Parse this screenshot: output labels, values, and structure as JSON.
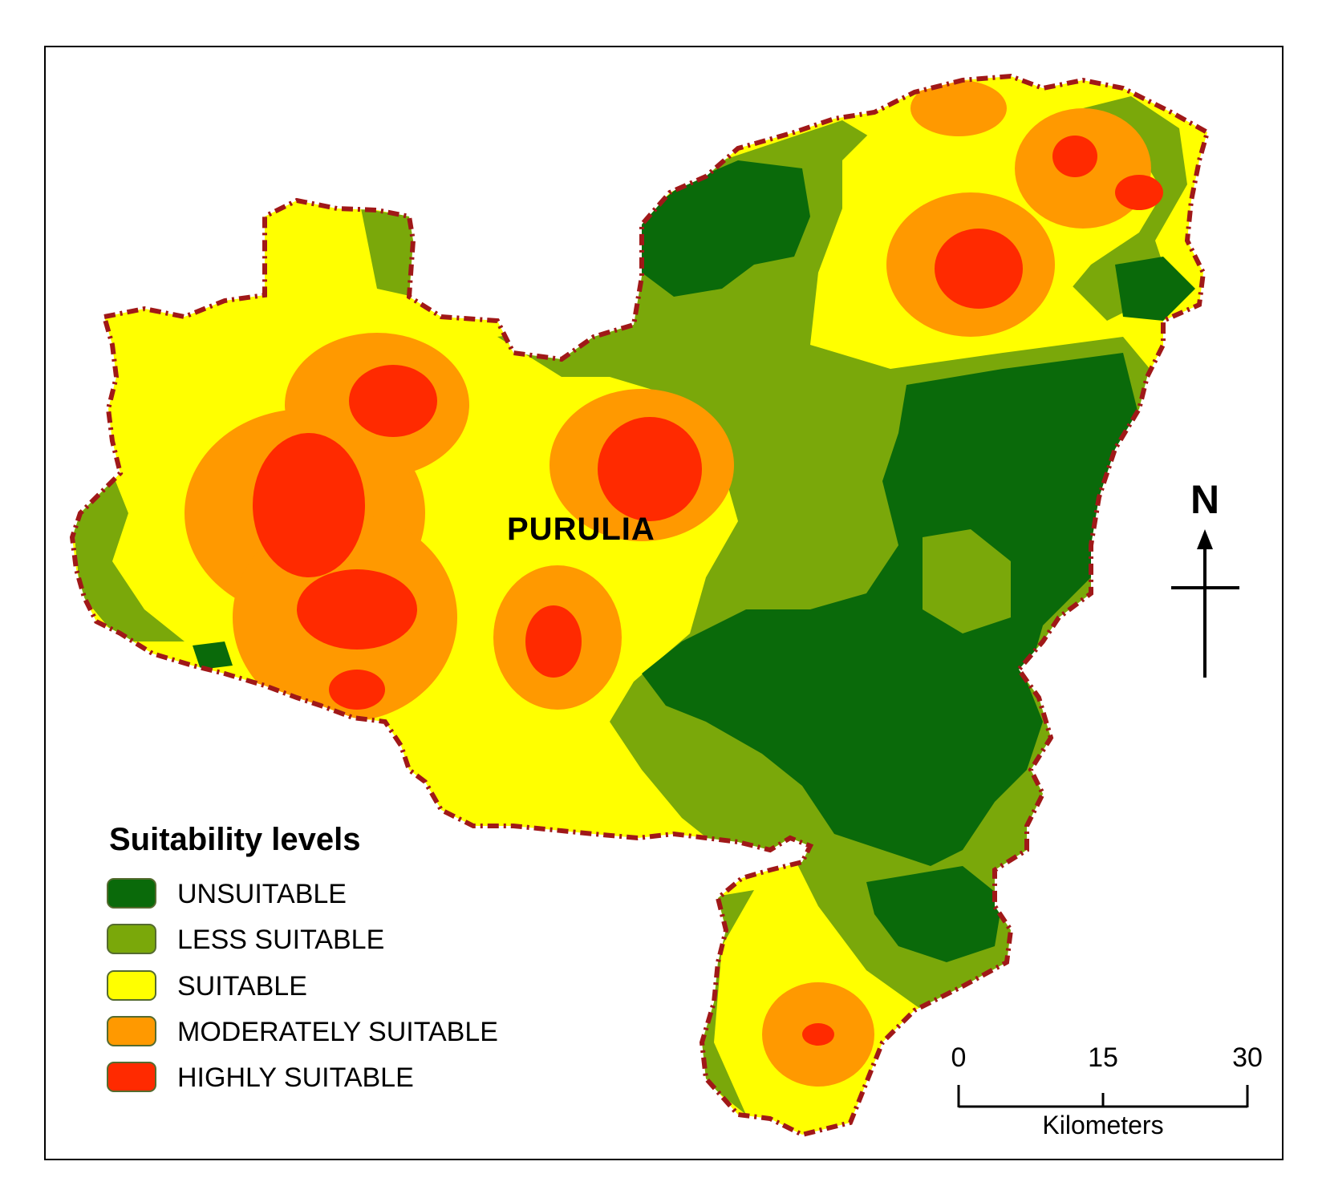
{
  "map": {
    "place_label": "PURULIA",
    "boundary_color": "#a01818"
  },
  "legend": {
    "title": "Suitability levels",
    "items": [
      {
        "label": "UNSUITABLE",
        "color": "#0a6a0a"
      },
      {
        "label": "LESS SUITABLE",
        "color": "#7aa80a"
      },
      {
        "label": "SUITABLE",
        "color": "#ffff00"
      },
      {
        "label": "MODERATELY SUITABLE",
        "color": "#ff9900"
      },
      {
        "label": "HIGHLY SUITABLE",
        "color": "#ff2a00"
      }
    ]
  },
  "scale_bar": {
    "ticks": [
      "0",
      "15",
      "30"
    ],
    "unit": "Kilometers"
  },
  "north_arrow": {
    "letter": "N"
  }
}
